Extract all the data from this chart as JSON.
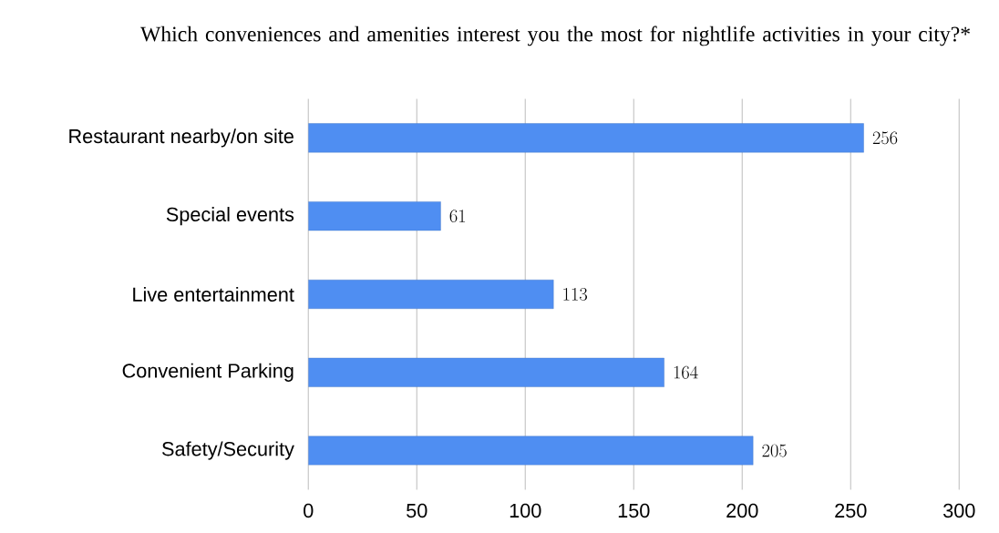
{
  "chart_data": {
    "type": "bar",
    "orientation": "horizontal",
    "title": "Which conveniences and amenities interest you the most for nightlife activities in your city?*",
    "categories": [
      "Restaurant nearby/on site",
      "Special events",
      "Live entertainment",
      "Convenient Parking",
      "Safety/Security"
    ],
    "values": [
      256,
      61,
      113,
      164,
      205
    ],
    "color": "#4f8ef2",
    "xlim": [
      0,
      300
    ],
    "xticks": [
      0,
      50,
      100,
      150,
      200,
      250,
      300
    ],
    "grid": "x",
    "data_labels": true
  }
}
